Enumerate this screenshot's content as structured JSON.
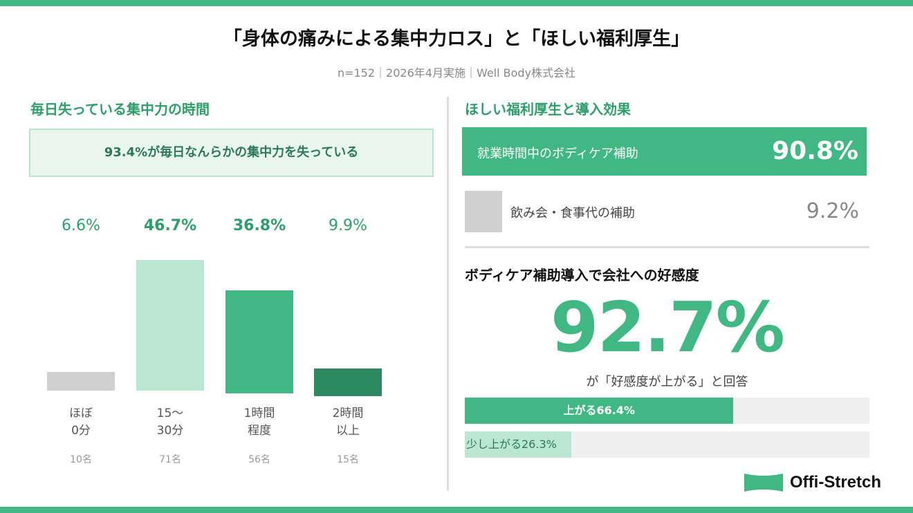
{
  "header": {
    "title": "「身体の痛みによる集中力ロス」と「ほしい福利厚生」",
    "subtitle": "n=152｜2026年4月実施｜Well Body株式会社"
  },
  "left": {
    "heading": "毎日失っている集中力の時間",
    "callout": "93.4%が毎日なんらかの集中力を失っている"
  },
  "chart_data": {
    "type": "bar",
    "categories": [
      "ほぼ\n0分",
      "15〜\n30分",
      "1時間\n程度",
      "2時間\n以上"
    ],
    "values": [
      6.6,
      46.7,
      36.8,
      9.9
    ],
    "value_labels": [
      "6.6%",
      "46.7%",
      "36.8%",
      "9.9%"
    ],
    "counts": [
      "10名",
      "71名",
      "56名",
      "15名"
    ],
    "colors": [
      "#d0d0d0",
      "#bbe6d2",
      "#41b883",
      "#2d8a60"
    ]
  },
  "right": {
    "heading": "ほしい福利厚生と導入効果",
    "options": [
      {
        "label": "就業時間中のボディケア補助",
        "value": "90.8%"
      },
      {
        "label": "飲み会・食事代の補助",
        "value": "9.2%"
      }
    ],
    "favor_heading": "ボディケア補助導入で会社への好感度",
    "favor_value": "92.7%",
    "favor_caption": "が「好感度が上がる」と回答",
    "breakdown": [
      {
        "label": "上がる66.4%",
        "value": 66.4,
        "color": "#41b883"
      },
      {
        "label": "少し上がる26.3%",
        "value": 26.3,
        "color": "#bbe6d2"
      }
    ]
  },
  "brand": {
    "name": "Offi-Stretch",
    "accent": "#41b883"
  }
}
